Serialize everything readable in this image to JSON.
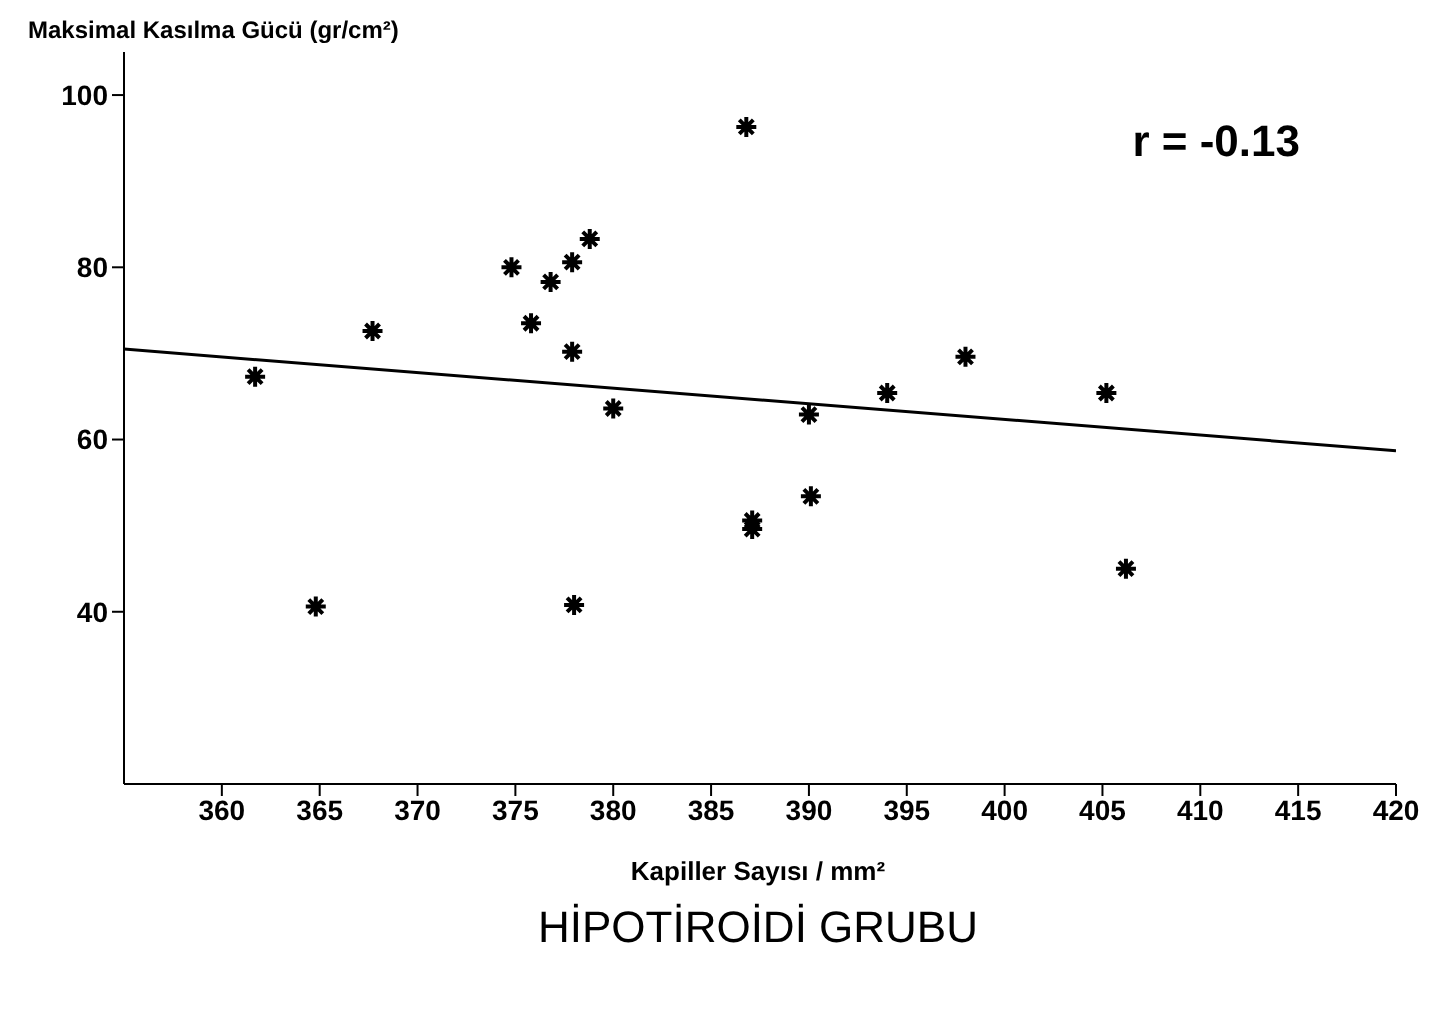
{
  "chart_data": {
    "type": "scatter",
    "title": "HİPOTİROİDİ GRUBU",
    "xlabel": "Kapiller Sayısı / mm²",
    "ylabel": "Maksimal Kasılma Gücü (gr/cm²)",
    "annotations": [
      "r = -0.13"
    ],
    "xlim": [
      355,
      420
    ],
    "xticks": [
      360,
      365,
      370,
      375,
      380,
      385,
      390,
      395,
      400,
      405,
      410,
      415,
      420
    ],
    "ylim": [
      20,
      105
    ],
    "yticks": [
      40,
      60,
      80,
      100
    ],
    "marker": "cross",
    "series": [
      {
        "color": "#000000",
        "x": [
          361.7,
          367.7,
          364.8,
          374.8,
          375.8,
          376.8,
          377.9,
          378.8,
          377.9,
          378.0,
          380.0,
          386.8,
          387.1,
          387.1,
          390.0,
          390.1,
          394.0,
          398.0,
          405.2,
          406.2
        ],
        "values": [
          67.3,
          72.6,
          40.6,
          80.0,
          73.5,
          78.3,
          80.6,
          83.3,
          70.2,
          40.8,
          63.6,
          96.3,
          50.6,
          49.6,
          62.9,
          53.4,
          65.4,
          69.6,
          65.4,
          45.0
        ]
      },
      {
        "type": "line",
        "color": "#000000",
        "marker": "none",
        "x": [
          355,
          420
        ],
        "values": [
          70.5,
          58.7
        ]
      }
    ]
  }
}
